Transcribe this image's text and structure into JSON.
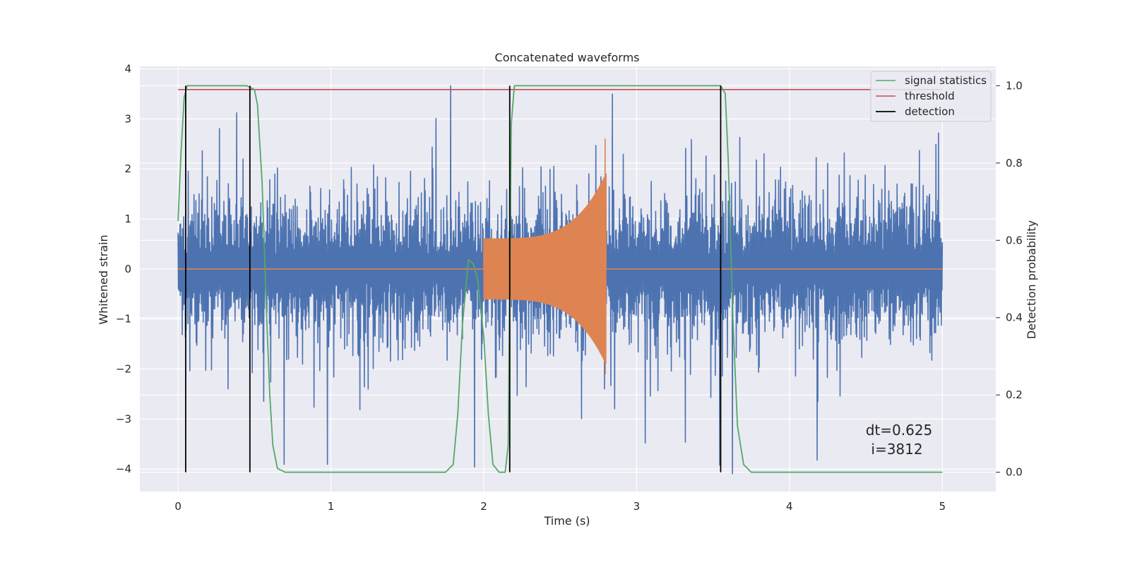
{
  "chart_data": {
    "type": "line",
    "title": "Concatenated waveforms",
    "xlabel": "Time (s)",
    "ylabel": "Whitened strain",
    "y2label": "Detection probability",
    "xlim": [
      -0.25,
      5.35
    ],
    "ylim": [
      -4.45,
      4.05
    ],
    "y2lim": [
      -0.05,
      1.05
    ],
    "x_ticks": [
      0,
      1,
      2,
      3,
      4,
      5
    ],
    "y_ticks": [
      -4,
      -3,
      -2,
      -1,
      0,
      1,
      2,
      3,
      4
    ],
    "y2_ticks": [
      0.0,
      0.2,
      0.4,
      0.6,
      0.8,
      1.0
    ],
    "x_tick_labels": [
      "0",
      "1",
      "2",
      "3",
      "4",
      "5"
    ],
    "y_tick_labels": [
      "−4",
      "−3",
      "−2",
      "−1",
      "0",
      "1",
      "2",
      "3",
      "4"
    ],
    "y2_tick_labels": [
      "0.0",
      "0.2",
      "0.4",
      "0.6",
      "0.8",
      "1.0"
    ],
    "grid": true,
    "legend_position": "top-right",
    "series": [
      {
        "name": "",
        "role": "whitened noise strain",
        "color": "#4c72b0",
        "axis": "left",
        "x_range": [
          0,
          5
        ],
        "typical_envelope": [
          -1.8,
          2.0
        ],
        "extreme_range": [
          -4.1,
          3.7
        ]
      },
      {
        "name": "",
        "role": "injected chirp waveform",
        "color": "#dd8452",
        "axis": "left",
        "x_range": [
          0,
          5
        ],
        "chirp_start": 2.0,
        "chirp_end": 2.8,
        "amplitude_start": 0.6,
        "amplitude_peak": [
          -2.1,
          2.6
        ]
      },
      {
        "name": "signal statistics",
        "color": "#55a868",
        "axis": "right",
        "x": [
          0,
          0.02,
          0.04,
          0.06,
          0.08,
          0.1,
          0.15,
          0.2,
          0.3,
          0.4,
          0.45,
          0.5,
          0.52,
          0.55,
          0.58,
          0.6,
          0.62,
          0.65,
          0.7,
          0.8,
          1.0,
          1.5,
          1.75,
          1.8,
          1.83,
          1.86,
          1.9,
          1.93,
          1.96,
          2.0,
          2.03,
          2.06,
          2.1,
          2.14,
          2.16,
          2.18,
          2.2,
          2.25,
          2.4,
          3.0,
          3.5,
          3.55,
          3.58,
          3.6,
          3.63,
          3.66,
          3.7,
          3.75,
          4.0,
          4.5,
          5.0
        ],
        "values": [
          0.65,
          0.83,
          0.97,
          1.0,
          1.0,
          1.0,
          1.0,
          1.0,
          1.0,
          1.0,
          1.0,
          0.99,
          0.95,
          0.75,
          0.4,
          0.2,
          0.07,
          0.01,
          0.0,
          0.0,
          0.0,
          0.0,
          0.0,
          0.02,
          0.15,
          0.38,
          0.55,
          0.54,
          0.5,
          0.35,
          0.15,
          0.02,
          0.0,
          0.0,
          0.07,
          0.9,
          1.0,
          1.0,
          1.0,
          1.0,
          1.0,
          1.0,
          0.98,
          0.8,
          0.4,
          0.12,
          0.02,
          0.0,
          0.0,
          0.0,
          0.0
        ]
      },
      {
        "name": "threshold",
        "color": "#c44e52",
        "axis": "right",
        "x": [
          0,
          5
        ],
        "values": [
          0.99,
          0.99
        ]
      },
      {
        "name": "detection",
        "color": "#000000",
        "axis": "right",
        "type": "vlines",
        "x": [
          0.05,
          0.47,
          2.17,
          3.55
        ],
        "ymin": 0.0,
        "ymax": 1.0
      }
    ],
    "annotations": [
      "dt=0.625",
      "i=3812"
    ]
  }
}
